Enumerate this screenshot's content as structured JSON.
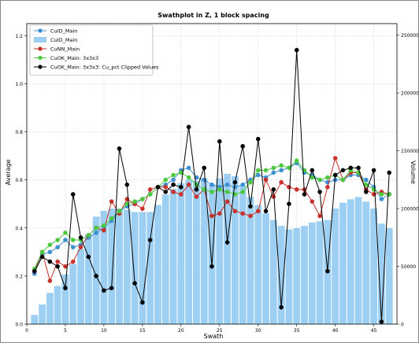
{
  "chart_data": {
    "type": "line",
    "title": "Swathplot in Z, 1 block spacing",
    "xlabel": "Swath",
    "ylabel": "Average",
    "y2label": "Volume",
    "xlim": [
      0,
      48
    ],
    "ylim": [
      0,
      1.25
    ],
    "y2lim": [
      0,
      260000
    ],
    "xticks": [
      "0",
      "5",
      "10",
      "15",
      "20",
      "25",
      "30",
      "35",
      "40",
      "45"
    ],
    "yticks": [
      "0.0",
      "0.2",
      "0.4",
      "0.6",
      "0.8",
      "1.0",
      "1.2"
    ],
    "y2ticks": [
      "0",
      "50000",
      "100000",
      "150000",
      "200000",
      "250000"
    ],
    "grid": true,
    "legend_position": "top-left",
    "x": [
      1,
      2,
      3,
      4,
      5,
      6,
      7,
      8,
      9,
      10,
      11,
      12,
      13,
      14,
      15,
      16,
      17,
      18,
      19,
      20,
      21,
      22,
      23,
      24,
      25,
      26,
      27,
      28,
      29,
      30,
      31,
      32,
      33,
      34,
      35,
      36,
      37,
      38,
      39,
      40,
      41,
      42,
      43,
      44,
      45,
      46,
      47
    ],
    "series": [
      {
        "name": "CuID_Main",
        "kind": "line",
        "color": "#3c8fd0",
        "values": [
          0.21,
          0.29,
          0.3,
          0.32,
          0.35,
          0.32,
          0.33,
          0.36,
          0.38,
          0.4,
          0.43,
          0.47,
          0.49,
          0.5,
          0.52,
          0.54,
          0.57,
          0.58,
          0.6,
          0.64,
          0.65,
          0.61,
          0.6,
          0.58,
          0.57,
          0.58,
          0.57,
          0.58,
          0.6,
          0.62,
          0.61,
          0.63,
          0.64,
          0.65,
          0.67,
          0.63,
          0.62,
          0.6,
          0.59,
          0.6,
          0.6,
          0.62,
          0.62,
          0.6,
          0.57,
          0.52,
          0.54
        ]
      },
      {
        "name": "CuID_Main",
        "kind": "bar",
        "color": "#9ccff2",
        "values": [
          8000,
          17000,
          27000,
          33000,
          43000,
          52000,
          65000,
          78000,
          93000,
          98000,
          100000,
          100000,
          99000,
          97000,
          97000,
          97000,
          103000,
          112000,
          117000,
          122000,
          125000,
          124000,
          126000,
          121000,
          126000,
          130000,
          128000,
          120000,
          110000,
          103000,
          96000,
          90000,
          85000,
          82000,
          83000,
          85000,
          88000,
          89000,
          90000,
          100000,
          105000,
          108000,
          110000,
          106000,
          100000,
          87000,
          83000
        ]
      },
      {
        "name": "CuNN_Main",
        "kind": "line",
        "color": "#c8302a",
        "values": [
          0.22,
          0.3,
          0.18,
          0.26,
          0.24,
          0.26,
          0.32,
          0.37,
          0.4,
          0.39,
          0.51,
          0.46,
          0.52,
          0.5,
          0.48,
          0.56,
          0.57,
          0.57,
          0.55,
          0.54,
          0.58,
          0.53,
          0.56,
          0.45,
          0.46,
          0.51,
          0.47,
          0.46,
          0.45,
          0.47,
          0.6,
          0.53,
          0.59,
          0.57,
          0.56,
          0.56,
          0.51,
          0.45,
          0.57,
          0.69,
          0.6,
          0.63,
          0.63,
          0.56,
          0.54,
          0.55,
          0.54
        ]
      },
      {
        "name": "CuOK_Main: 3x3x3",
        "kind": "line",
        "color": "#4cc83f",
        "values": [
          0.23,
          0.3,
          0.33,
          0.35,
          0.38,
          0.35,
          0.35,
          0.37,
          0.4,
          0.41,
          0.44,
          0.47,
          0.5,
          0.51,
          0.52,
          0.54,
          0.57,
          0.6,
          0.62,
          0.63,
          0.61,
          0.58,
          0.56,
          0.55,
          0.56,
          0.55,
          0.54,
          0.55,
          0.59,
          0.64,
          0.64,
          0.65,
          0.66,
          0.65,
          0.68,
          0.64,
          0.61,
          0.6,
          0.61,
          0.62,
          0.6,
          0.64,
          0.63,
          0.58,
          0.56,
          0.54,
          0.54
        ]
      },
      {
        "name": "CuOK_Main: 3x3x3: Cu_pct Clipped Values",
        "kind": "line",
        "color": "#000000",
        "values": [
          0.22,
          0.28,
          0.26,
          0.24,
          0.15,
          0.54,
          0.36,
          0.28,
          0.2,
          0.14,
          0.15,
          0.73,
          0.58,
          0.17,
          0.09,
          0.35,
          0.57,
          0.55,
          0.58,
          0.57,
          0.82,
          0.56,
          0.65,
          0.24,
          0.76,
          0.34,
          0.59,
          0.74,
          0.49,
          0.77,
          0.47,
          0.56,
          0.07,
          0.5,
          1.14,
          0.54,
          0.64,
          0.55,
          0.22,
          0.62,
          0.64,
          0.65,
          0.65,
          0.55,
          0.64,
          0.01,
          0.63
        ]
      }
    ]
  }
}
